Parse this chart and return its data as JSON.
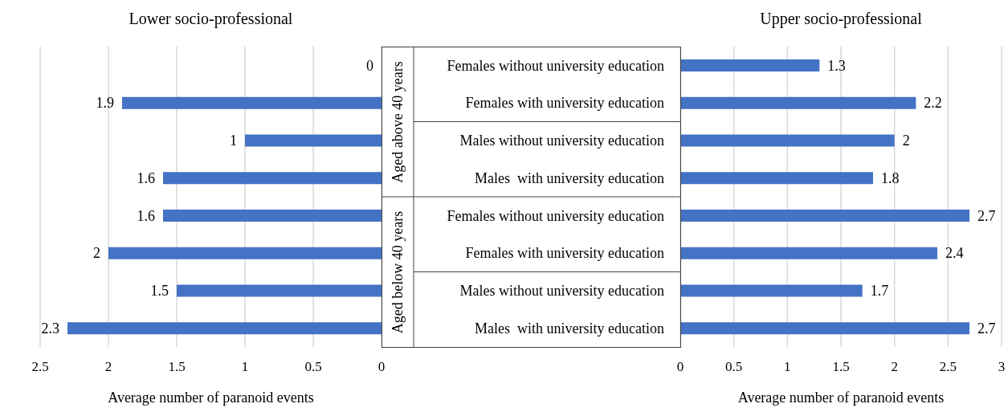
{
  "chart_data": [
    {
      "type": "bar",
      "orientation": "horizontal",
      "title": "Lower socio-professional",
      "xlabel": "Average number of paranoid events",
      "categories": [
        null,
        null,
        null,
        null,
        null,
        null,
        null,
        null
      ],
      "values": [
        0,
        1.9,
        1,
        1.6,
        1.6,
        2,
        1.5,
        2.3
      ],
      "color": "#4472c4",
      "xlim": [
        2.5,
        0
      ],
      "xticks": [
        2.5,
        2,
        1.5,
        1,
        0.5,
        0
      ],
      "grid": "x",
      "data_labels": true,
      "tick_labels": "x"
    },
    {
      "type": "bar",
      "orientation": "horizontal",
      "title": "Upper socio-professional",
      "xlabel": "Average number of paranoid events",
      "categories": [
        "Females without university education",
        "Females with university education",
        "Males without university education",
        "Males  with university education",
        "Females without university education",
        "Females with university education",
        "Males without university education",
        "Males  with university education"
      ],
      "values": [
        1.3,
        2.2,
        2,
        1.8,
        2.7,
        2.4,
        1.7,
        2.7
      ],
      "color": "#4472c4",
      "xlim": [
        0,
        3
      ],
      "xticks": [
        0,
        0.5,
        1,
        1.5,
        2,
        2.5,
        3
      ],
      "grid": "x",
      "data_labels": true,
      "annotations": [
        "Aged above 40 years",
        "Aged below 40 years"
      ]
    }
  ]
}
